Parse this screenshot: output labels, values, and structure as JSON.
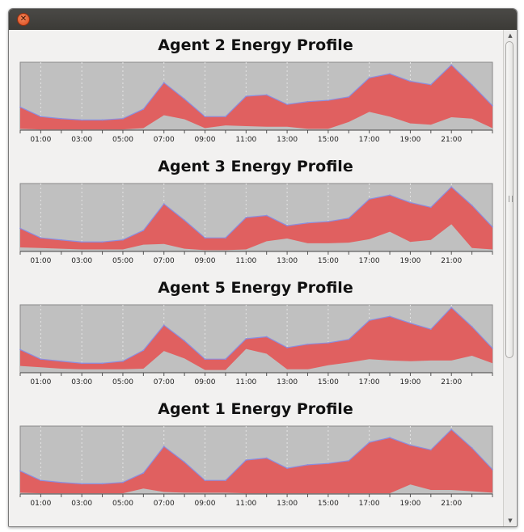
{
  "window": {
    "close_icon": "close-icon"
  },
  "colors": {
    "plot_bg": "#c0c0c0",
    "total_fill": "#e06060",
    "total_stroke": "#8a8ee0",
    "base_fill": "#c0c0c0",
    "grid": "#e4e4e4"
  },
  "x_tick_labels": [
    "01:00",
    "03:00",
    "05:00",
    "07:00",
    "09:00",
    "11:00",
    "13:00",
    "15:00",
    "17:00",
    "19:00",
    "21:00"
  ],
  "chart_data": [
    {
      "type": "area",
      "title": "Agent 2 Energy Profile",
      "x": [
        0,
        1,
        2,
        3,
        4,
        5,
        6,
        7,
        8,
        9,
        10,
        11,
        12,
        13,
        14,
        15,
        16,
        17,
        18,
        19,
        20,
        21,
        22,
        23
      ],
      "xlabel": "",
      "ylabel": "",
      "ylim": [
        0,
        100
      ],
      "grid": true,
      "series": [
        {
          "values": [
            34,
            20,
            17,
            15,
            15,
            17,
            31,
            70,
            46,
            20,
            20,
            50,
            52,
            38,
            42,
            44,
            49,
            77,
            83,
            72,
            67,
            96,
            67,
            36
          ]
        },
        {
          "values": [
            2,
            1,
            1,
            1,
            1,
            1,
            3,
            22,
            16,
            3,
            7,
            6,
            5,
            5,
            2,
            2,
            12,
            27,
            20,
            10,
            8,
            19,
            17,
            3
          ]
        }
      ]
    },
    {
      "type": "area",
      "title": "Agent 3 Energy Profile",
      "x": [
        0,
        1,
        2,
        3,
        4,
        5,
        6,
        7,
        8,
        9,
        10,
        11,
        12,
        13,
        14,
        15,
        16,
        17,
        18,
        19,
        20,
        21,
        22,
        23
      ],
      "xlabel": "",
      "ylabel": "",
      "ylim": [
        0,
        100
      ],
      "grid": true,
      "series": [
        {
          "values": [
            34,
            20,
            17,
            14,
            14,
            17,
            31,
            70,
            46,
            20,
            20,
            50,
            53,
            38,
            42,
            44,
            49,
            77,
            83,
            72,
            65,
            95,
            68,
            36
          ]
        },
        {
          "values": [
            6,
            5,
            4,
            3,
            3,
            3,
            10,
            11,
            4,
            2,
            2,
            3,
            15,
            19,
            12,
            12,
            13,
            18,
            29,
            14,
            17,
            40,
            5,
            3
          ]
        }
      ]
    },
    {
      "type": "area",
      "title": "Agent 5 Energy Profile",
      "x": [
        0,
        1,
        2,
        3,
        4,
        5,
        6,
        7,
        8,
        9,
        10,
        11,
        12,
        13,
        14,
        15,
        16,
        17,
        18,
        19,
        20,
        21,
        22,
        23
      ],
      "xlabel": "",
      "ylabel": "",
      "ylim": [
        0,
        100
      ],
      "grid": true,
      "series": [
        {
          "values": [
            34,
            20,
            17,
            14,
            14,
            17,
            33,
            70,
            47,
            20,
            20,
            50,
            53,
            37,
            42,
            44,
            49,
            77,
            83,
            73,
            64,
            96,
            68,
            36
          ]
        },
        {
          "values": [
            10,
            8,
            6,
            5,
            5,
            5,
            6,
            32,
            21,
            4,
            4,
            35,
            28,
            5,
            5,
            11,
            15,
            20,
            18,
            17,
            18,
            18,
            25,
            14
          ]
        }
      ]
    },
    {
      "type": "area",
      "title": "Agent 1 Energy Profile",
      "x": [
        0,
        1,
        2,
        3,
        4,
        5,
        6,
        7,
        8,
        9,
        10,
        11,
        12,
        13,
        14,
        15,
        16,
        17,
        18,
        19,
        20,
        21,
        22,
        23
      ],
      "xlabel": "",
      "ylabel": "",
      "ylim": [
        0,
        100
      ],
      "grid": true,
      "series": [
        {
          "values": [
            34,
            20,
            17,
            15,
            15,
            17,
            31,
            70,
            47,
            20,
            20,
            50,
            53,
            38,
            43,
            45,
            49,
            76,
            83,
            72,
            65,
            95,
            68,
            36
          ]
        },
        {
          "values": [
            2,
            1,
            1,
            1,
            1,
            1,
            8,
            3,
            2,
            2,
            2,
            1,
            1,
            1,
            1,
            1,
            1,
            1,
            1,
            14,
            6,
            6,
            4,
            2
          ]
        }
      ]
    }
  ]
}
